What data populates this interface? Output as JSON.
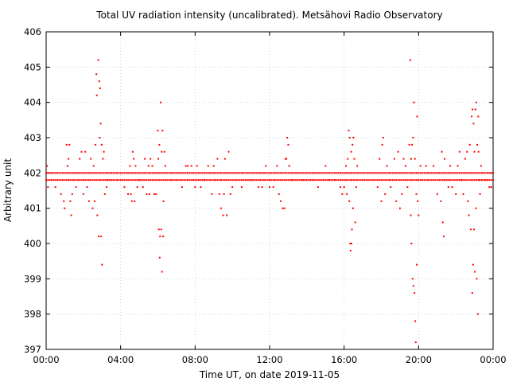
{
  "chart_data": {
    "type": "scatter",
    "title": "Total UV radiation intensity (uncalibrated). Metsähovi Radio Observatory",
    "xlabel": "Time UT, on date 2019-11-05",
    "ylabel": "Arbitrary unit",
    "x_unit": "hours UT",
    "xlim": [
      0,
      24
    ],
    "ylim": [
      397,
      406
    ],
    "x_ticks": [
      {
        "value": 0,
        "label": "00:00"
      },
      {
        "value": 4,
        "label": "04:00"
      },
      {
        "value": 8,
        "label": "08:00"
      },
      {
        "value": 12,
        "label": "12:00"
      },
      {
        "value": 16,
        "label": "16:00"
      },
      {
        "value": 20,
        "label": "20:00"
      },
      {
        "value": 24,
        "label": "00:00"
      }
    ],
    "y_ticks": [
      397,
      398,
      399,
      400,
      401,
      402,
      403,
      404,
      405,
      406
    ],
    "grid": true,
    "marker_color": "#ff0000",
    "baseline": [
      402.0,
      401.8
    ],
    "outliers": [
      [
        0.05,
        402.2
      ],
      [
        0.1,
        401.6
      ],
      [
        0.5,
        401.6
      ],
      [
        0.8,
        401.4
      ],
      [
        0.95,
        401.2
      ],
      [
        1.0,
        401.0
      ],
      [
        1.1,
        402.8
      ],
      [
        1.15,
        402.2
      ],
      [
        1.2,
        402.4
      ],
      [
        1.25,
        402.8
      ],
      [
        1.3,
        401.2
      ],
      [
        1.35,
        400.8
      ],
      [
        1.4,
        401.4
      ],
      [
        1.6,
        401.6
      ],
      [
        1.8,
        402.4
      ],
      [
        1.9,
        402.6
      ],
      [
        2.0,
        401.4
      ],
      [
        2.1,
        402.6
      ],
      [
        2.2,
        401.6
      ],
      [
        2.3,
        401.2
      ],
      [
        2.4,
        402.4
      ],
      [
        2.5,
        401.0
      ],
      [
        2.55,
        402.2
      ],
      [
        2.6,
        401.2
      ],
      [
        2.65,
        402.8
      ],
      [
        2.7,
        404.8
      ],
      [
        2.72,
        404.2
      ],
      [
        2.75,
        400.8
      ],
      [
        2.8,
        405.2
      ],
      [
        2.82,
        400.2
      ],
      [
        2.85,
        404.6
      ],
      [
        2.88,
        403.0
      ],
      [
        2.9,
        404.4
      ],
      [
        2.93,
        403.4
      ],
      [
        2.95,
        400.2
      ],
      [
        2.98,
        402.8
      ],
      [
        3.0,
        399.4
      ],
      [
        3.05,
        402.4
      ],
      [
        3.1,
        402.6
      ],
      [
        3.15,
        401.4
      ],
      [
        3.25,
        401.6
      ],
      [
        3.3,
        401.8
      ],
      [
        4.2,
        401.6
      ],
      [
        4.4,
        401.4
      ],
      [
        4.5,
        402.2
      ],
      [
        4.55,
        401.4
      ],
      [
        4.6,
        401.2
      ],
      [
        4.65,
        402.6
      ],
      [
        4.7,
        402.4
      ],
      [
        4.75,
        401.2
      ],
      [
        4.8,
        402.2
      ],
      [
        4.9,
        401.6
      ],
      [
        5.0,
        401.8
      ],
      [
        5.2,
        401.6
      ],
      [
        5.3,
        402.4
      ],
      [
        5.4,
        401.4
      ],
      [
        5.5,
        402.2
      ],
      [
        5.55,
        401.4
      ],
      [
        5.6,
        402.4
      ],
      [
        5.7,
        402.2
      ],
      [
        5.8,
        401.4
      ],
      [
        5.9,
        401.4
      ],
      [
        6.0,
        403.2
      ],
      [
        6.02,
        402.4
      ],
      [
        6.05,
        400.4
      ],
      [
        6.08,
        402.8
      ],
      [
        6.1,
        399.6
      ],
      [
        6.12,
        400.2
      ],
      [
        6.15,
        404.0
      ],
      [
        6.18,
        400.4
      ],
      [
        6.2,
        402.6
      ],
      [
        6.22,
        399.2
      ],
      [
        6.25,
        403.2
      ],
      [
        6.28,
        400.2
      ],
      [
        6.3,
        401.2
      ],
      [
        6.35,
        402.6
      ],
      [
        6.4,
        402.2
      ],
      [
        7.3,
        401.6
      ],
      [
        7.5,
        402.2
      ],
      [
        7.6,
        402.2
      ],
      [
        7.8,
        402.2
      ],
      [
        8.0,
        401.6
      ],
      [
        8.1,
        402.2
      ],
      [
        8.3,
        401.6
      ],
      [
        8.5,
        401.8
      ],
      [
        8.7,
        402.2
      ],
      [
        8.9,
        401.4
      ],
      [
        9.0,
        402.2
      ],
      [
        9.2,
        402.4
      ],
      [
        9.3,
        401.4
      ],
      [
        9.4,
        401.0
      ],
      [
        9.5,
        400.8
      ],
      [
        9.55,
        401.4
      ],
      [
        9.6,
        402.4
      ],
      [
        9.7,
        400.8
      ],
      [
        9.8,
        402.6
      ],
      [
        9.9,
        401.4
      ],
      [
        10.0,
        401.6
      ],
      [
        10.5,
        401.6
      ],
      [
        11.0,
        401.8
      ],
      [
        11.4,
        401.6
      ],
      [
        11.6,
        401.6
      ],
      [
        11.8,
        402.2
      ],
      [
        12.0,
        401.6
      ],
      [
        12.2,
        401.6
      ],
      [
        12.4,
        402.2
      ],
      [
        12.5,
        401.4
      ],
      [
        12.6,
        401.2
      ],
      [
        12.7,
        401.0
      ],
      [
        12.8,
        401.0
      ],
      [
        12.85,
        402.4
      ],
      [
        12.9,
        402.4
      ],
      [
        12.95,
        403.0
      ],
      [
        13.0,
        402.8
      ],
      [
        13.05,
        402.2
      ],
      [
        13.2,
        401.8
      ],
      [
        13.8,
        401.8
      ],
      [
        14.2,
        401.8
      ],
      [
        14.6,
        401.6
      ],
      [
        15.0,
        402.2
      ],
      [
        15.2,
        401.8
      ],
      [
        15.5,
        401.8
      ],
      [
        15.8,
        401.6
      ],
      [
        15.9,
        401.4
      ],
      [
        16.0,
        401.6
      ],
      [
        16.1,
        402.2
      ],
      [
        16.15,
        401.4
      ],
      [
        16.2,
        402.4
      ],
      [
        16.25,
        403.2
      ],
      [
        16.28,
        401.2
      ],
      [
        16.3,
        403.0
      ],
      [
        16.33,
        400.0
      ],
      [
        16.35,
        399.8
      ],
      [
        16.38,
        402.6
      ],
      [
        16.4,
        400.0
      ],
      [
        16.42,
        400.4
      ],
      [
        16.45,
        402.8
      ],
      [
        16.48,
        401.0
      ],
      [
        16.5,
        403.0
      ],
      [
        16.55,
        402.4
      ],
      [
        16.6,
        400.6
      ],
      [
        16.65,
        401.6
      ],
      [
        16.7,
        402.2
      ],
      [
        17.8,
        401.6
      ],
      [
        17.9,
        402.4
      ],
      [
        18.0,
        401.2
      ],
      [
        18.05,
        402.8
      ],
      [
        18.1,
        403.0
      ],
      [
        18.2,
        401.4
      ],
      [
        18.3,
        402.2
      ],
      [
        18.5,
        401.6
      ],
      [
        18.7,
        402.4
      ],
      [
        18.8,
        401.2
      ],
      [
        18.9,
        402.6
      ],
      [
        19.0,
        401.0
      ],
      [
        19.1,
        401.4
      ],
      [
        19.2,
        402.4
      ],
      [
        19.3,
        402.2
      ],
      [
        19.4,
        401.6
      ],
      [
        19.5,
        402.8
      ],
      [
        19.55,
        405.2
      ],
      [
        19.58,
        400.8
      ],
      [
        19.6,
        402.4
      ],
      [
        19.62,
        400.0
      ],
      [
        19.65,
        402.8
      ],
      [
        19.68,
        399.0
      ],
      [
        19.7,
        403.0
      ],
      [
        19.72,
        398.8
      ],
      [
        19.75,
        404.0
      ],
      [
        19.78,
        398.6
      ],
      [
        19.8,
        402.4
      ],
      [
        19.82,
        397.8
      ],
      [
        19.85,
        397.2
      ],
      [
        19.88,
        401.4
      ],
      [
        19.9,
        399.4
      ],
      [
        19.92,
        403.6
      ],
      [
        19.95,
        401.2
      ],
      [
        20.0,
        400.8
      ],
      [
        20.1,
        402.2
      ],
      [
        20.4,
        402.2
      ],
      [
        20.8,
        402.2
      ],
      [
        21.0,
        401.4
      ],
      [
        21.2,
        401.2
      ],
      [
        21.25,
        402.6
      ],
      [
        21.3,
        400.6
      ],
      [
        21.35,
        400.2
      ],
      [
        21.4,
        402.4
      ],
      [
        21.5,
        401.8
      ],
      [
        21.6,
        401.6
      ],
      [
        21.7,
        402.2
      ],
      [
        21.8,
        401.6
      ],
      [
        22.0,
        401.4
      ],
      [
        22.1,
        402.2
      ],
      [
        22.2,
        402.6
      ],
      [
        22.3,
        401.8
      ],
      [
        22.4,
        401.4
      ],
      [
        22.5,
        402.4
      ],
      [
        22.6,
        402.6
      ],
      [
        22.65,
        401.2
      ],
      [
        22.7,
        400.8
      ],
      [
        22.75,
        402.8
      ],
      [
        22.8,
        400.4
      ],
      [
        22.85,
        403.6
      ],
      [
        22.88,
        398.6
      ],
      [
        22.9,
        403.8
      ],
      [
        22.93,
        399.4
      ],
      [
        22.95,
        403.4
      ],
      [
        22.98,
        400.4
      ],
      [
        23.0,
        402.6
      ],
      [
        23.02,
        399.2
      ],
      [
        23.05,
        403.8
      ],
      [
        23.08,
        401.0
      ],
      [
        23.1,
        404.0
      ],
      [
        23.12,
        399.0
      ],
      [
        23.15,
        402.8
      ],
      [
        23.18,
        398.0
      ],
      [
        23.2,
        403.6
      ],
      [
        23.22,
        402.6
      ],
      [
        23.25,
        401.8
      ],
      [
        23.3,
        401.4
      ],
      [
        23.35,
        402.2
      ],
      [
        23.6,
        401.8
      ],
      [
        23.8,
        401.6
      ],
      [
        23.9,
        401.6
      ]
    ]
  }
}
